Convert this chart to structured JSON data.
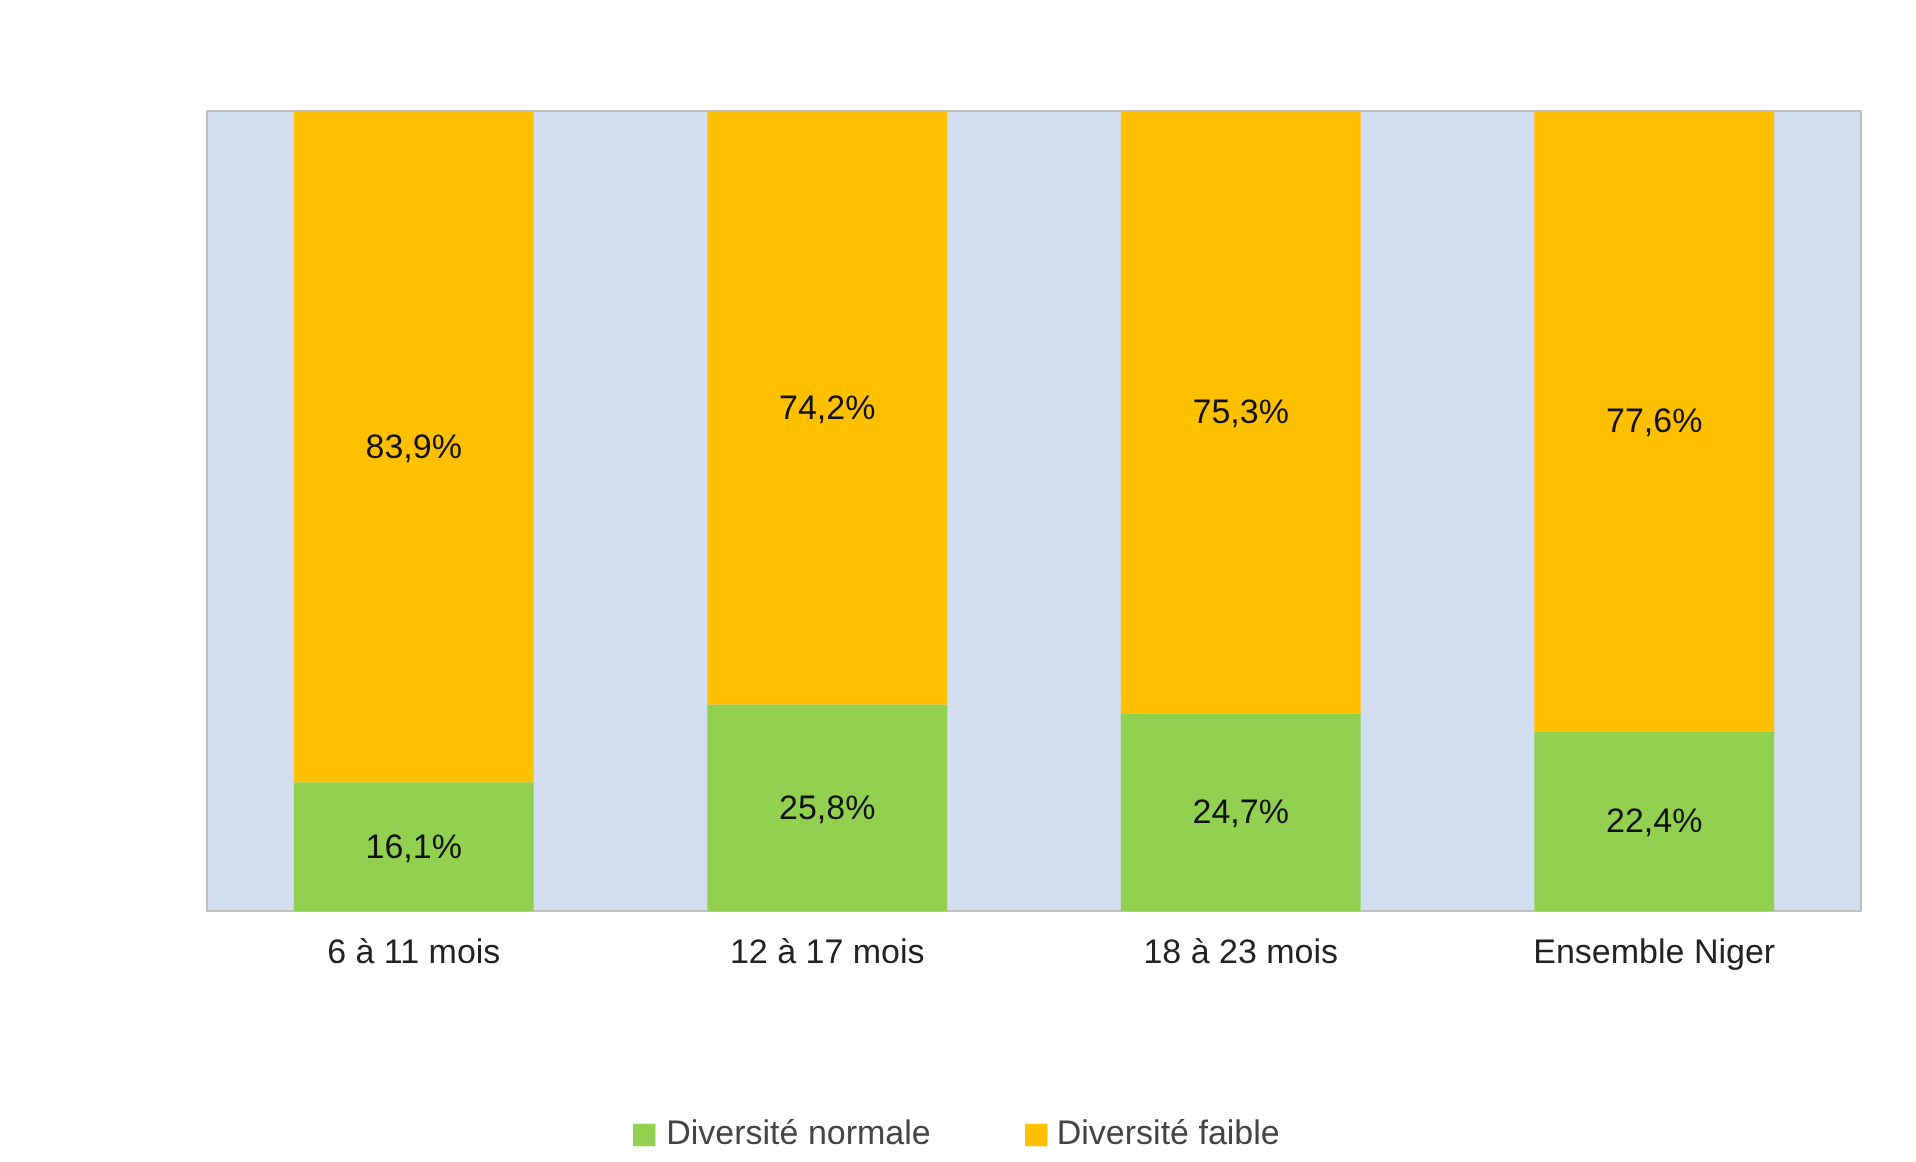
{
  "chart_data": {
    "type": "bar",
    "stacked": true,
    "legend": "bottom",
    "grid": false,
    "categories": [
      "6 à 11 mois",
      "12 à 17 mois",
      "18 à 23 mois",
      "Ensemble Niger"
    ],
    "series": [
      {
        "name": "Diversité normale",
        "color": "#92d050",
        "values": [
          16.1,
          25.8,
          24.7,
          22.4
        ],
        "value_labels": [
          "16,1%",
          "25,8%",
          "24,7%",
          "22,4%"
        ]
      },
      {
        "name": "Diversité faible",
        "color": "#ffc000",
        "values": [
          83.9,
          74.2,
          75.3,
          77.6
        ],
        "value_labels": [
          "83,9%",
          "74,2%",
          "75,3%",
          "77,6%"
        ]
      }
    ]
  }
}
